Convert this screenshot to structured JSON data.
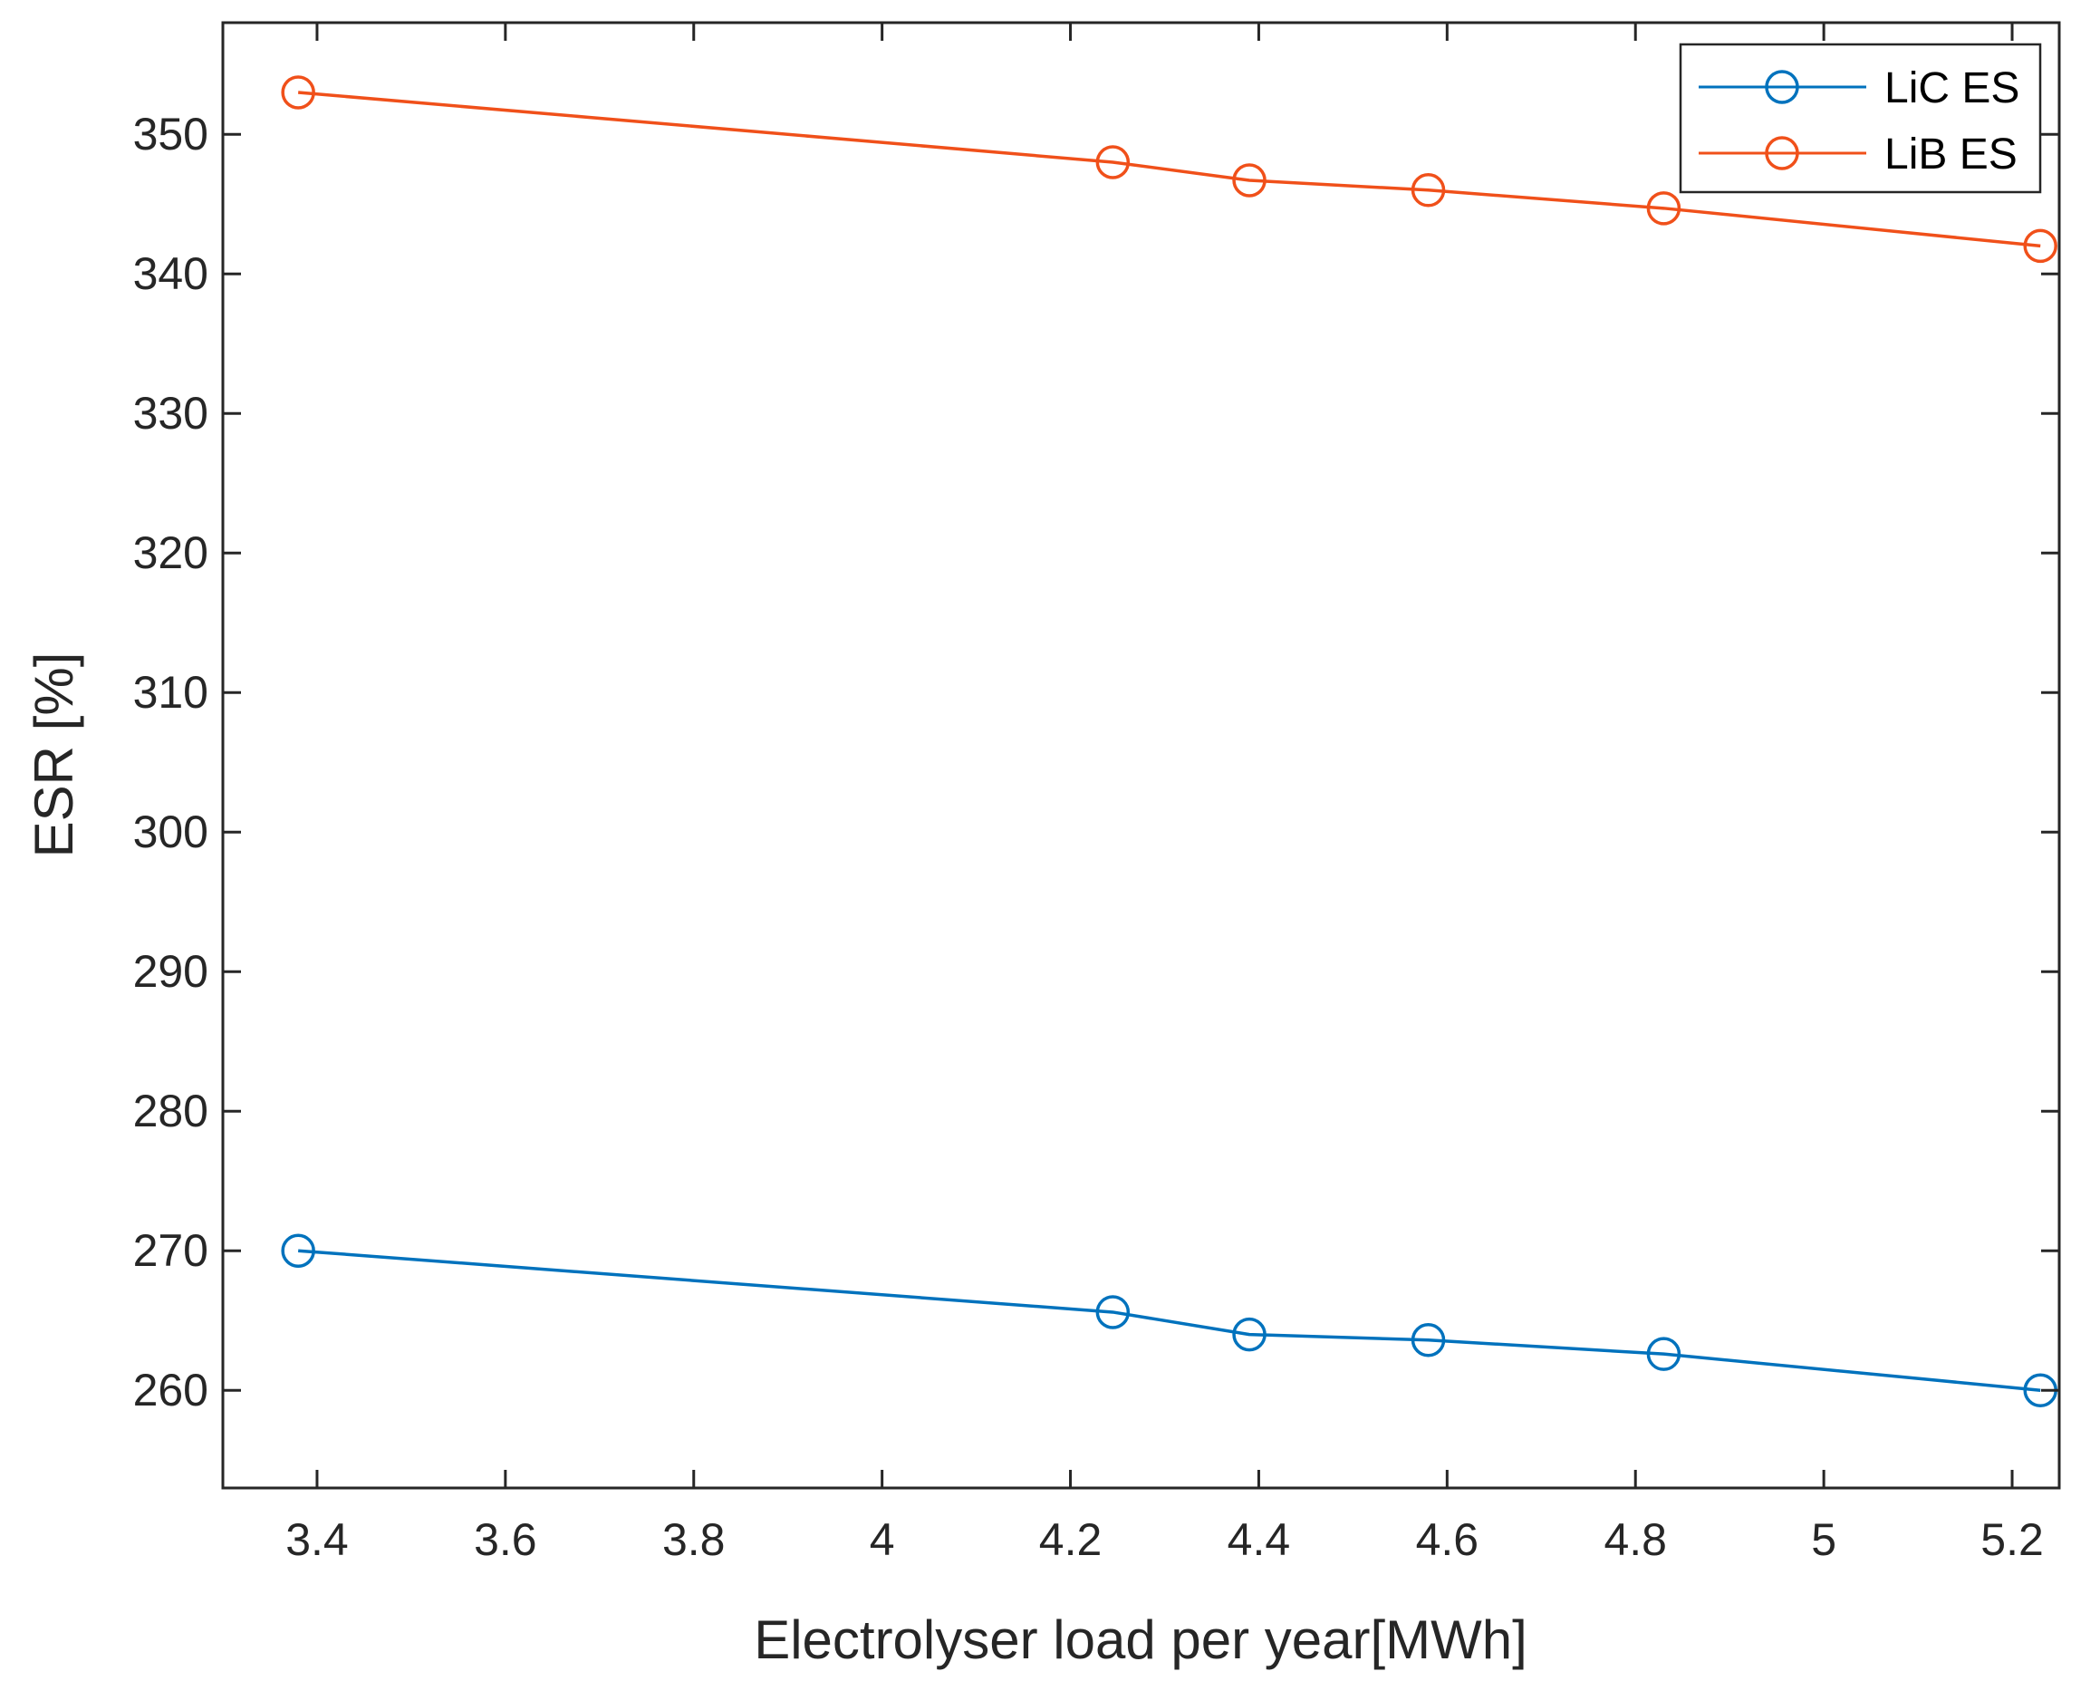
{
  "chart_data": {
    "type": "line",
    "title": "",
    "xlabel": "Electrolyser load per year[MWh]",
    "ylabel": "ESR [%]",
    "xlim": [
      3.3,
      5.25
    ],
    "ylim": [
      253,
      358
    ],
    "xticks": [
      3.4,
      3.6,
      3.8,
      4,
      4.2,
      4.4,
      4.6,
      4.8,
      5,
      5.2
    ],
    "xtick_labels": [
      "3.4",
      "3.6",
      "3.8",
      "4",
      "4.2",
      "4.4",
      "4.6",
      "4.8",
      "5",
      "5.2"
    ],
    "yticks": [
      260,
      270,
      280,
      290,
      300,
      310,
      320,
      330,
      340,
      350
    ],
    "ytick_labels": [
      "260",
      "270",
      "280",
      "290",
      "300",
      "310",
      "320",
      "330",
      "340",
      "350"
    ],
    "grid": false,
    "legend_position": "top-right",
    "x": [
      3.38,
      4.245,
      4.39,
      4.58,
      4.83,
      5.23
    ],
    "series": [
      {
        "name": "LiC ES",
        "color": "#0072BD",
        "marker": "circle",
        "values": [
          270,
          265.6,
          264,
          263.6,
          262.6,
          260
        ]
      },
      {
        "name": "LiB ES",
        "color": "#F0501A",
        "marker": "circle",
        "values": [
          353,
          348,
          346.7,
          346,
          344.7,
          342
        ]
      }
    ]
  }
}
